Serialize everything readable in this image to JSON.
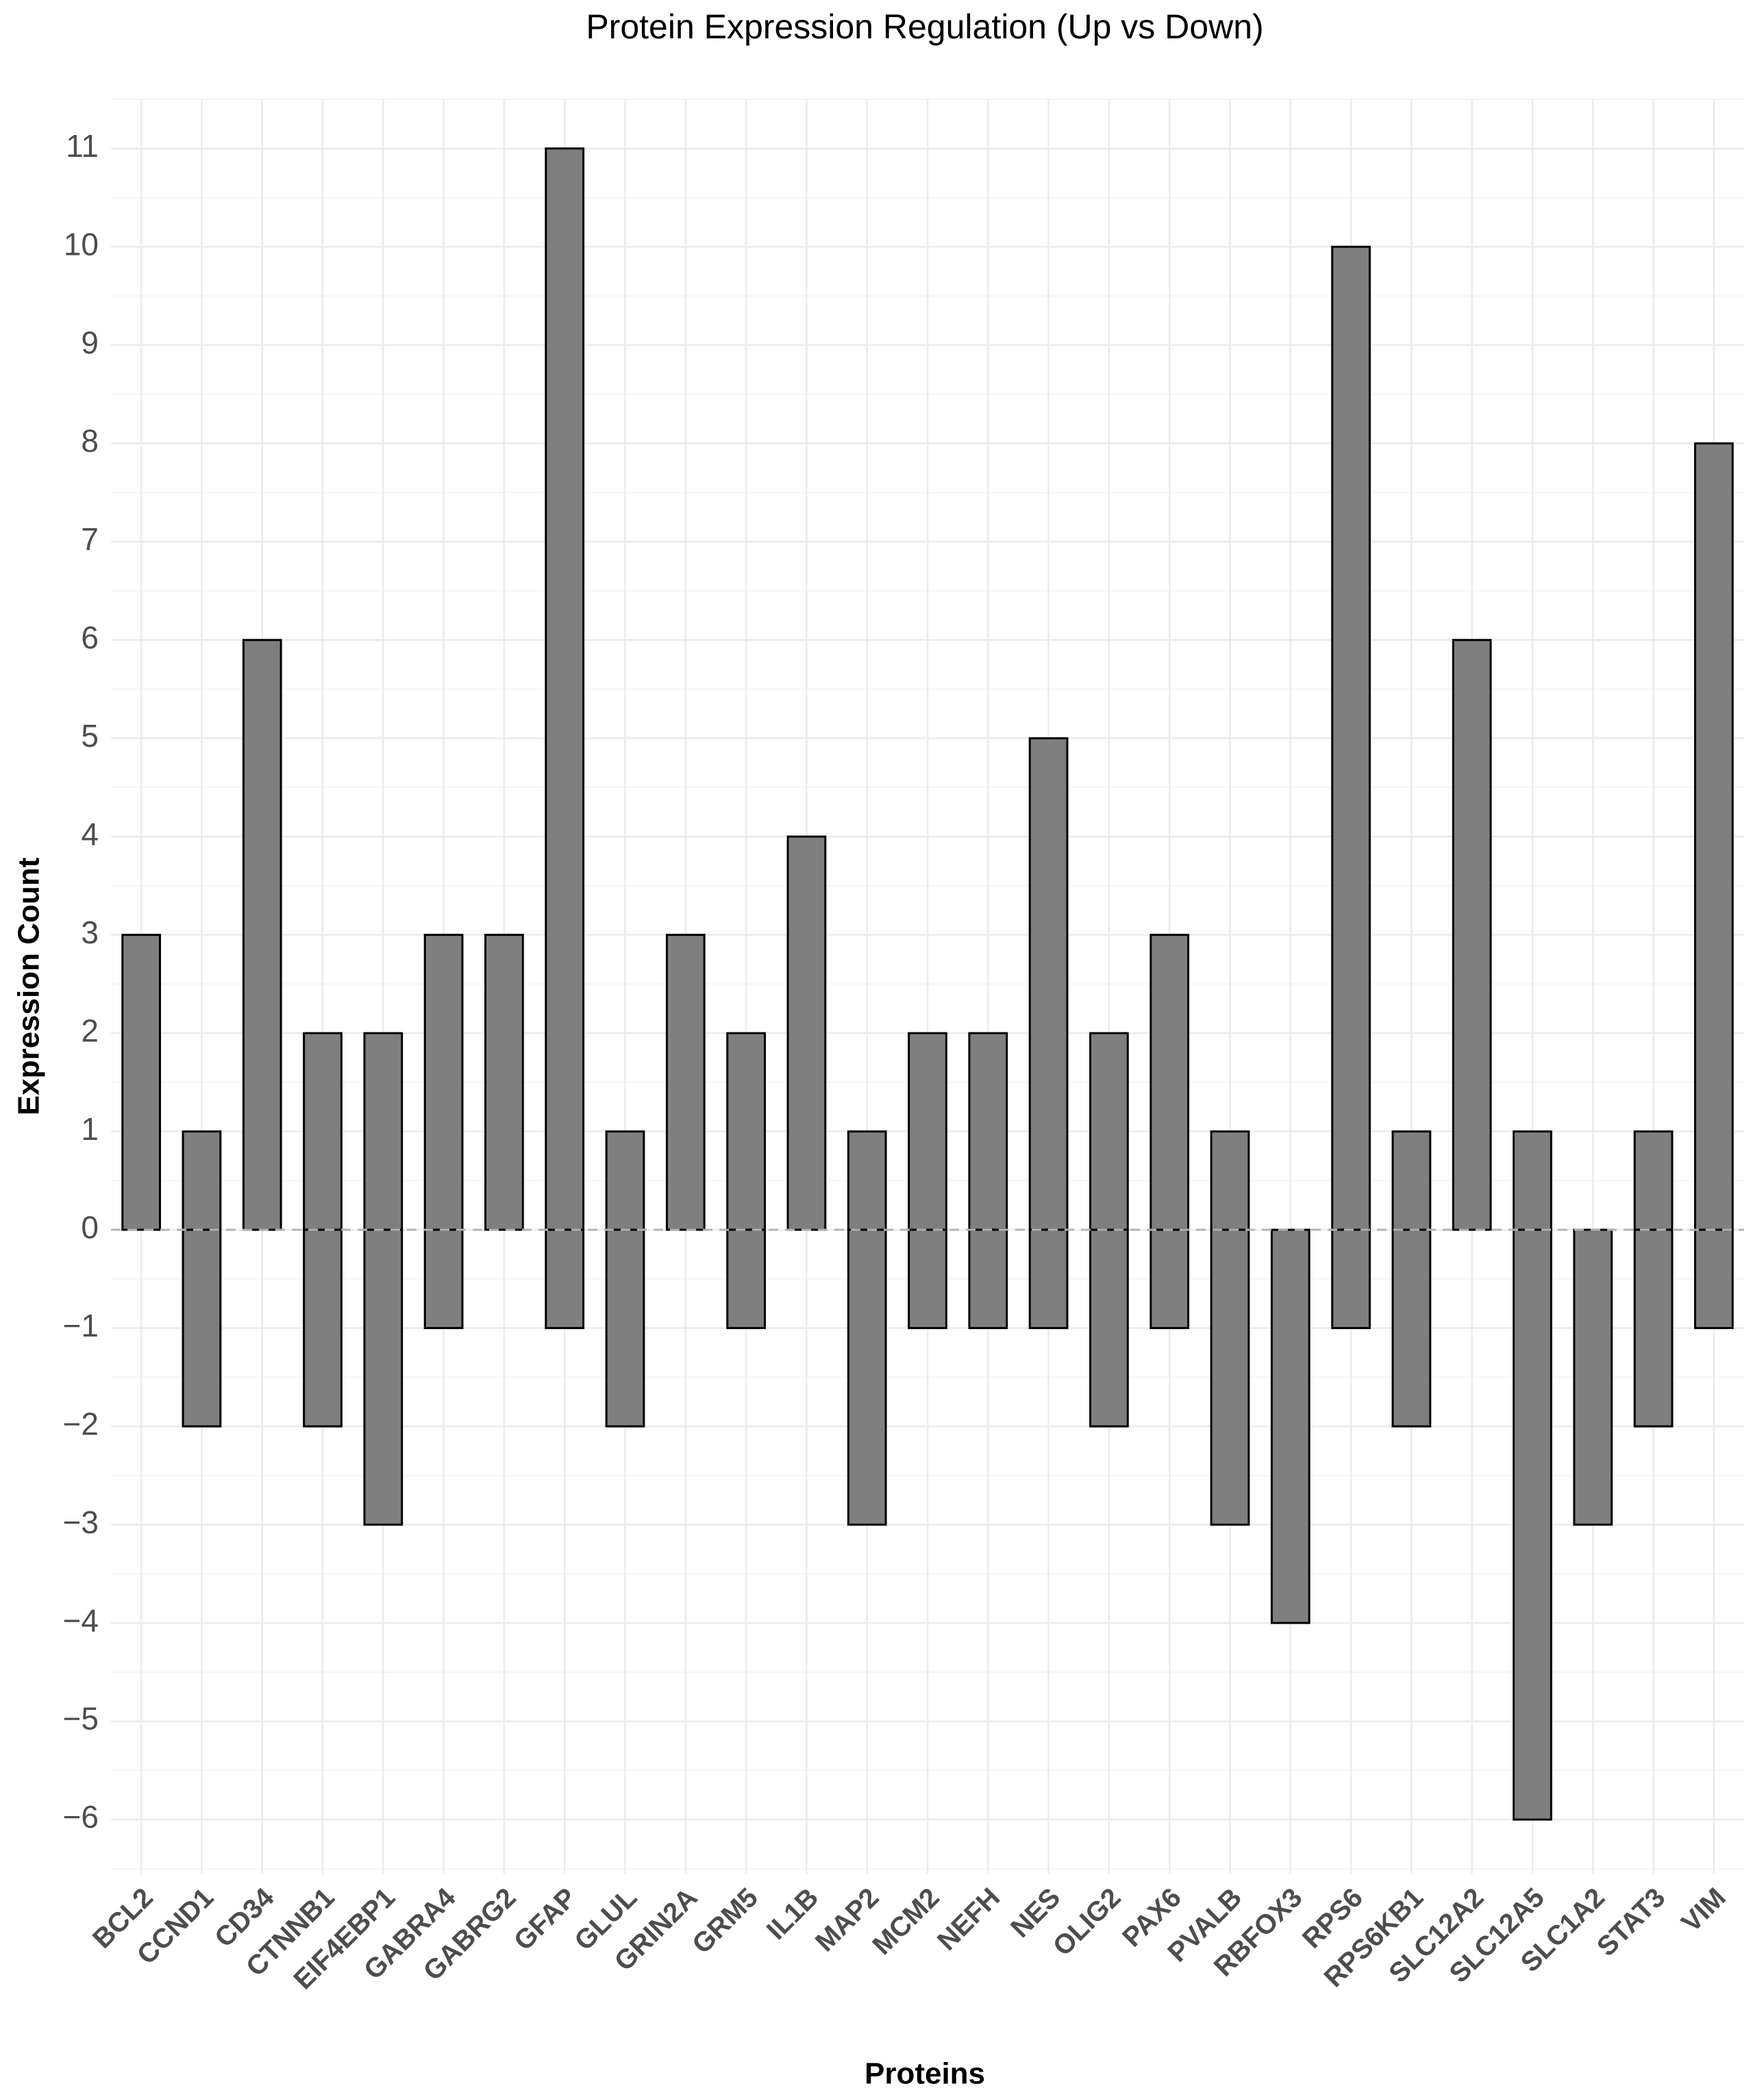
{
  "chart_data": {
    "type": "diverging-bar",
    "title": "Protein Expression Regulation (Up vs Down)",
    "x_label": "Proteins",
    "y_label": "Expression Count",
    "categories": [
      "BCL2",
      "CCND1",
      "CD34",
      "CTNNB1",
      "EIF4EBP1",
      "GABRA4",
      "GABRG2",
      "GFAP",
      "GLUL",
      "GRIN2A",
      "GRM5",
      "IL1B",
      "MAP2",
      "MCM2",
      "NEFH",
      "NES",
      "OLIG2",
      "PAX6",
      "PVALB",
      "RBFOX3",
      "RPS6",
      "RPS6KB1",
      "SLC12A2",
      "SLC12A5",
      "SLC1A2",
      "STAT3",
      "VIM"
    ],
    "series": [
      {
        "color": "#7f7f7f",
        "values": [
          3,
          1,
          6,
          2,
          2,
          3,
          3,
          11,
          1,
          3,
          2,
          4,
          1,
          2,
          2,
          5,
          2,
          3,
          1,
          0,
          10,
          1,
          6,
          1,
          0,
          1,
          8
        ]
      },
      {
        "color": "#7f7f7f",
        "values": [
          0,
          -2,
          0,
          -2,
          -3,
          -1,
          0,
          -1,
          -2,
          0,
          -1,
          0,
          -3,
          -1,
          -1,
          -1,
          -2,
          -1,
          -3,
          -4,
          -1,
          -2,
          0,
          -6,
          -3,
          -2,
          -1
        ]
      }
    ],
    "ylim": [
      -6.55,
      11.5
    ],
    "yticks": [
      {
        "value": -6,
        "label": "−6"
      },
      {
        "value": -5,
        "label": "−5"
      },
      {
        "value": -4,
        "label": "−4"
      },
      {
        "value": -3,
        "label": "−3"
      },
      {
        "value": -2,
        "label": "−2"
      },
      {
        "value": -1,
        "label": "−1"
      },
      0,
      1,
      2,
      3,
      4,
      5,
      6,
      7,
      8,
      9,
      10,
      11
    ],
    "grid": true
  }
}
